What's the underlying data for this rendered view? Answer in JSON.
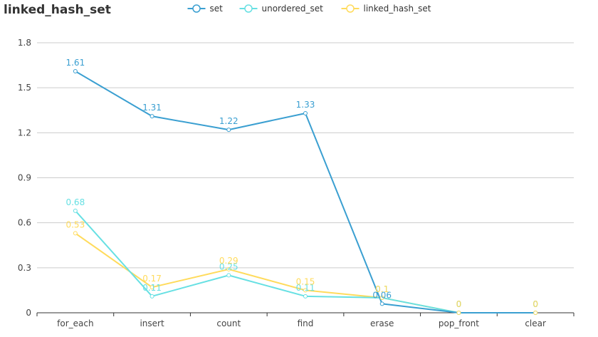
{
  "chart_data": {
    "type": "line",
    "title": "linked_hash_set",
    "categories": [
      "for_each",
      "insert",
      "count",
      "find",
      "erase",
      "pop_front",
      "clear"
    ],
    "series": [
      {
        "name": "set",
        "color": "#3a9fd1",
        "values": [
          1.61,
          1.31,
          1.22,
          1.33,
          0.06,
          0,
          0
        ]
      },
      {
        "name": "unordered_set",
        "color": "#67e0e3",
        "values": [
          0.68,
          0.11,
          0.25,
          0.11,
          0.1,
          0,
          0
        ]
      },
      {
        "name": "linked_hash_set",
        "color": "#ffdb5c",
        "values": [
          0.53,
          0.17,
          0.29,
          0.15,
          0.1,
          0,
          0
        ]
      }
    ],
    "yticks": [
      "0",
      "0.3",
      "0.6",
      "0.9",
      "1.2",
      "1.5",
      "1.8"
    ],
    "ylim": [
      0,
      1.8
    ],
    "grid": true,
    "legend_position": "top-center"
  }
}
